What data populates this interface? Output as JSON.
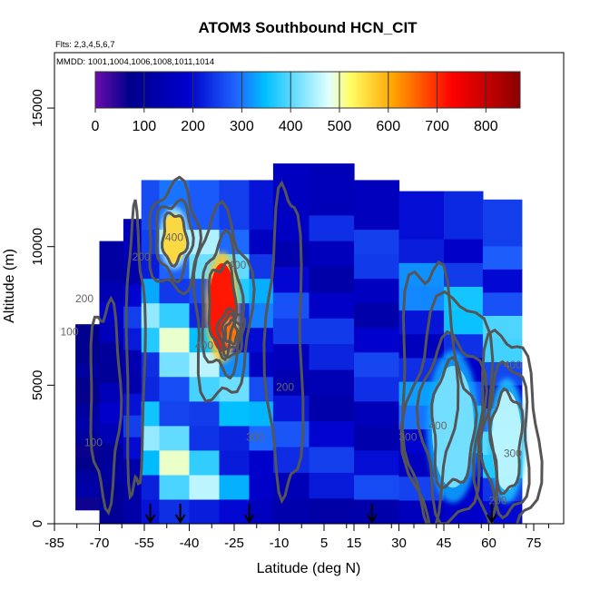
{
  "chart_data": {
    "type": "heatmap",
    "title": "ATOM3 Southbound HCN_CIT",
    "notes": [
      "Flts: 2,3,4,5,6,7",
      "MMDD: 1001,1004,1006,1008,1011,1014"
    ],
    "xlabel": "Latitude (deg N)",
    "ylabel": "Altitude (m)",
    "xlim": [
      -85,
      85
    ],
    "ylim": [
      0,
      17000
    ],
    "x_ticks": [
      -85,
      -70,
      -55,
      -40,
      -25,
      -10,
      5,
      15,
      30,
      45,
      60,
      75
    ],
    "y_ticks": [
      0,
      5000,
      10000,
      15000
    ],
    "colorbar": {
      "ticks": [
        0,
        100,
        200,
        300,
        400,
        500,
        600,
        700,
        800
      ],
      "range": [
        0,
        870
      ],
      "colors": [
        "#6a0dad",
        "#00008b",
        "#0000cd",
        "#1e64ff",
        "#00bfff",
        "#e0ffff",
        "#ffff66",
        "#ff8c00",
        "#ff0000",
        "#8b0000"
      ]
    },
    "contour_levels": [
      100,
      200,
      300,
      400,
      500,
      600
    ],
    "contour_labels": [
      {
        "text": "100",
        "lat": -80,
        "alt": 6800
      },
      {
        "text": "200",
        "lat": -75,
        "alt": 8000
      },
      {
        "text": "100",
        "lat": -72,
        "alt": 2800
      },
      {
        "text": "200",
        "lat": -56,
        "alt": 9500
      },
      {
        "text": "400",
        "lat": -45,
        "alt": 10200
      },
      {
        "text": "400",
        "lat": -35,
        "alt": 6300
      },
      {
        "text": "400",
        "lat": -24,
        "alt": 9200
      },
      {
        "text": "300",
        "lat": -18,
        "alt": 3000
      },
      {
        "text": "200",
        "lat": -8,
        "alt": 4800
      },
      {
        "text": "400",
        "lat": 43,
        "alt": 3400
      },
      {
        "text": "300",
        "lat": 33,
        "alt": 3000
      },
      {
        "text": "400",
        "lat": 68,
        "alt": 5600
      },
      {
        "text": "300",
        "lat": 68,
        "alt": 2400
      },
      {
        "text": "200",
        "lat": 63,
        "alt": 700
      }
    ],
    "field_columns": [
      {
        "lat_start": -78,
        "lat_end": -70,
        "alt_top": 7200,
        "alt_bottom": 500,
        "value": 110
      },
      {
        "lat_start": -70,
        "lat_end": -62,
        "alt_top": 10200,
        "alt_bottom": 0,
        "value": 160
      },
      {
        "lat_start": -62,
        "lat_end": -56,
        "alt_top": 11000,
        "alt_bottom": 0,
        "value": 220
      },
      {
        "lat_start": -56,
        "lat_end": -50,
        "alt_top": 12400,
        "alt_bottom": 0,
        "value": 380
      },
      {
        "lat_start": -50,
        "lat_end": -40,
        "alt_top": 12400,
        "alt_bottom": 0,
        "value": 430
      },
      {
        "lat_start": -40,
        "lat_end": -30,
        "alt_top": 12400,
        "alt_bottom": 0,
        "value": 400
      },
      {
        "lat_start": -30,
        "lat_end": -20,
        "alt_top": 12400,
        "alt_bottom": 0,
        "value": 360
      },
      {
        "lat_start": -20,
        "lat_end": -12,
        "alt_top": 12400,
        "alt_bottom": 0,
        "value": 300
      },
      {
        "lat_start": -12,
        "lat_end": 0,
        "alt_top": 13000,
        "alt_bottom": 0,
        "value": 240
      },
      {
        "lat_start": 0,
        "lat_end": 15,
        "alt_top": 13000,
        "alt_bottom": 0,
        "value": 220
      },
      {
        "lat_start": 15,
        "lat_end": 30,
        "alt_top": 12400,
        "alt_bottom": 0,
        "value": 230
      },
      {
        "lat_start": 30,
        "lat_end": 45,
        "alt_top": 12000,
        "alt_bottom": 0,
        "value": 290
      },
      {
        "lat_start": 45,
        "lat_end": 58,
        "alt_top": 12000,
        "alt_bottom": 0,
        "value": 330
      },
      {
        "lat_start": 58,
        "lat_end": 71,
        "alt_top": 11700,
        "alt_bottom": 0,
        "value": 360
      }
    ],
    "hotspots": [
      {
        "lat": -45,
        "alt": 10300,
        "rlat": 4,
        "ralt": 900,
        "value": 560
      },
      {
        "lat": -29,
        "alt": 7800,
        "rlat": 4.5,
        "ralt": 1600,
        "value": 720
      },
      {
        "lat": -26,
        "alt": 6900,
        "rlat": 2,
        "ralt": 400,
        "value": 650
      },
      {
        "lat": 48,
        "alt": 3500,
        "rlat": 7,
        "ralt": 2200,
        "value": 420
      },
      {
        "lat": 66,
        "alt": 3000,
        "rlat": 5,
        "ralt": 1800,
        "value": 460
      }
    ],
    "flight_arrows_lat": [
      -53,
      -43,
      -20,
      21,
      61
    ]
  }
}
